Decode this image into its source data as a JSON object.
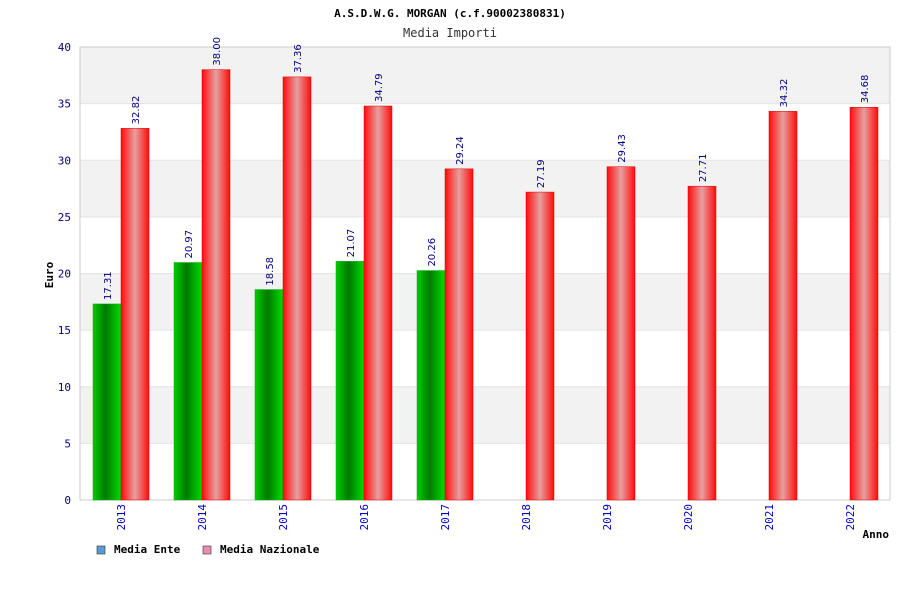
{
  "chart_data": {
    "type": "bar",
    "title": "A.S.D.W.G. MORGAN (c.f.90002380831)",
    "subtitle": "Media Importi",
    "xlabel": "Anno",
    "ylabel": "Euro",
    "ylim": [
      0,
      40
    ],
    "yticks": [
      0,
      5,
      10,
      15,
      20,
      25,
      30,
      35,
      40
    ],
    "grid": true,
    "legend_position": "bottom-left",
    "categories": [
      "2013",
      "2014",
      "2015",
      "2016",
      "2017",
      "2018",
      "2019",
      "2020",
      "2021",
      "2022"
    ],
    "series": [
      {
        "name": "Media Ente",
        "color": "#00bb00",
        "legend_color": "#5b9bd5",
        "values": [
          17.31,
          20.97,
          18.58,
          21.07,
          20.26,
          null,
          null,
          null,
          null,
          null
        ],
        "labels": [
          "17.31",
          "20.97",
          "18.58",
          "21.07",
          "20.26",
          null,
          null,
          null,
          null,
          null
        ]
      },
      {
        "name": "Media Nazionale",
        "color": "#ff0000",
        "legend_color": "#e68fb3",
        "values": [
          32.82,
          38.0,
          37.36,
          34.79,
          29.24,
          27.19,
          29.43,
          27.71,
          34.32,
          34.68
        ],
        "labels": [
          "32.82",
          "38.00",
          "37.36",
          "34.79",
          "29.24",
          "27.19",
          "29.43",
          "27.71",
          "34.32",
          "34.68"
        ]
      }
    ]
  }
}
